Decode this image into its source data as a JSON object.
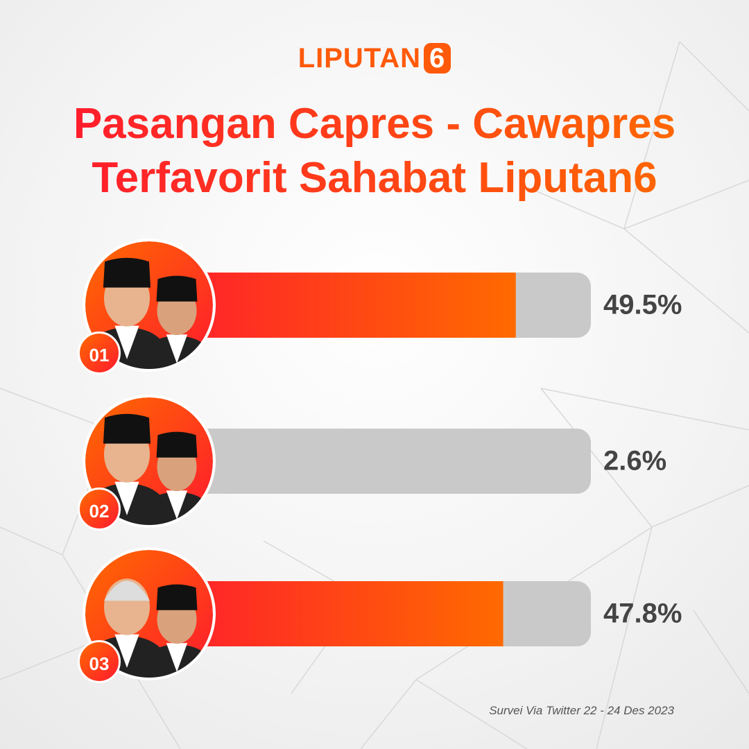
{
  "header": {
    "logo": "LIPUTAN",
    "logo_mark": "6"
  },
  "chart_data": {
    "type": "bar",
    "orientation": "horizontal",
    "title": "Pasangan Capres - Cawapres Terfavorit Sahabat Liputan6",
    "categories": [
      "01",
      "02",
      "03"
    ],
    "values": [
      49.5,
      2.6,
      47.8
    ],
    "value_labels": [
      "49.5%",
      "2.6%",
      "47.8%"
    ],
    "colors": [
      "#ff1a2e",
      "#ff6a00"
    ],
    "track_color": "#c9c9c9",
    "source": "Survei Via Twitter 22 - 24 Des 2023"
  }
}
